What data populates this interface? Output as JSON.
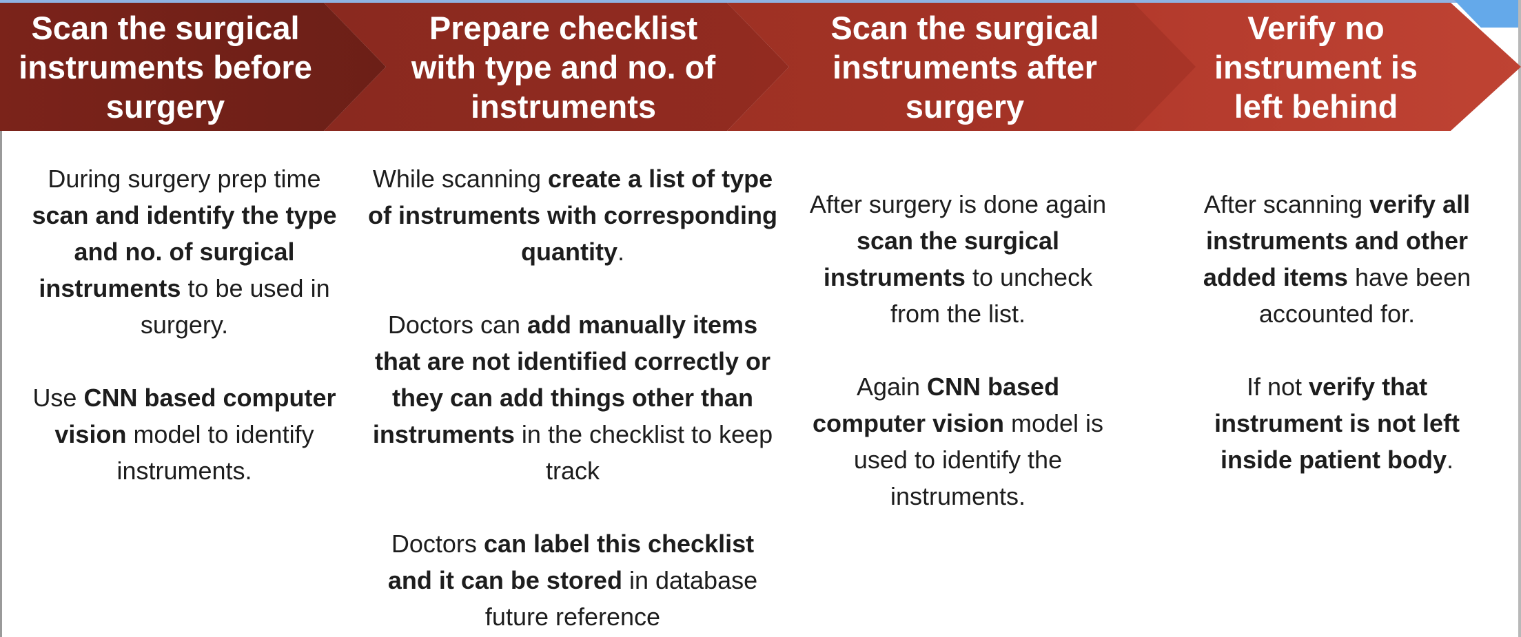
{
  "steps": [
    {
      "title": "Scan the surgical\ninstruments before\nsurgery",
      "paragraphs": [
        [
          {
            "t": "During surgery prep time ",
            "b": false
          },
          {
            "t": "scan and identify the type and no. of surgical instruments",
            "b": true
          },
          {
            "t": " to be used in surgery.",
            "b": false
          }
        ],
        [
          {
            "t": "Use ",
            "b": false
          },
          {
            "t": "CNN based computer vision",
            "b": true
          },
          {
            "t": " model to identify instruments.",
            "b": false
          }
        ]
      ]
    },
    {
      "title": "Prepare checklist\nwith type and no. of\ninstruments",
      "paragraphs": [
        [
          {
            "t": "While scanning ",
            "b": false
          },
          {
            "t": "create a list of type of instruments with corresponding quantity",
            "b": true
          },
          {
            "t": ".",
            "b": false
          }
        ],
        [
          {
            "t": "Doctors can ",
            "b": false
          },
          {
            "t": "add manually items that are not identified correctly or they can add things other than instruments",
            "b": true
          },
          {
            "t": " in the checklist to keep track",
            "b": false
          }
        ],
        [
          {
            "t": "Doctors ",
            "b": false
          },
          {
            "t": "can label this checklist and it can be stored",
            "b": true
          },
          {
            "t": " in database future reference",
            "b": false
          }
        ]
      ]
    },
    {
      "title": "Scan the surgical\ninstruments after\nsurgery",
      "paragraphs": [
        [
          {
            "t": "After surgery is done again ",
            "b": false
          },
          {
            "t": "scan the surgical instruments",
            "b": true
          },
          {
            "t": " to uncheck from the list.",
            "b": false
          }
        ],
        [
          {
            "t": "Again ",
            "b": false
          },
          {
            "t": "CNN based computer vision",
            "b": true
          },
          {
            "t": " model is used to identify the instruments.",
            "b": false
          }
        ]
      ]
    },
    {
      "title": "Verify no\ninstrument is\nleft behind",
      "paragraphs": [
        [
          {
            "t": "After scanning ",
            "b": false
          },
          {
            "t": "verify all instruments and other added items",
            "b": true
          },
          {
            "t": " have been accounted for.",
            "b": false
          }
        ],
        [
          {
            "t": "If not ",
            "b": false
          },
          {
            "t": "verify that instrument is not left inside patient body",
            "b": true
          },
          {
            "t": ".",
            "b": false
          }
        ]
      ]
    }
  ],
  "colors": {
    "step1": "#7b231a",
    "step2": "#8a291f",
    "step3": "#a33225",
    "step4": "#bb4030",
    "text": "#1d1d1d"
  }
}
